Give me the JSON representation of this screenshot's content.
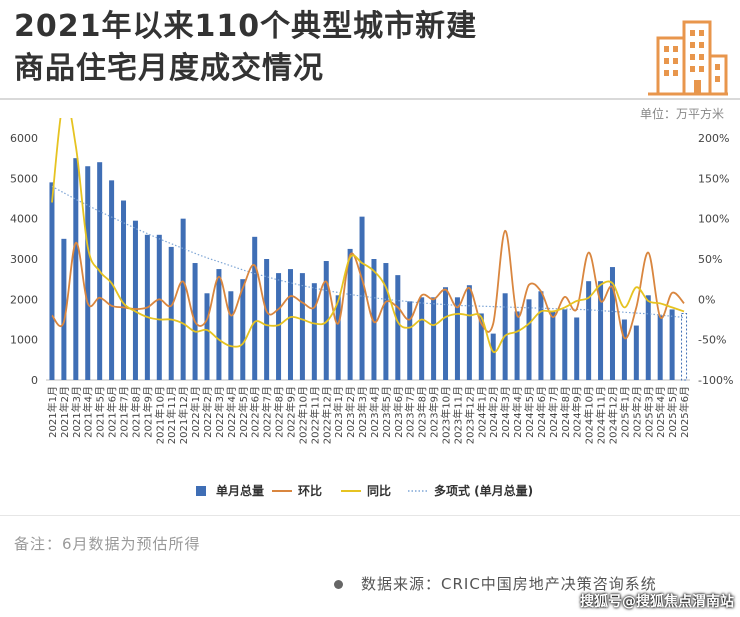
{
  "title_line1": "2021年以来110个典型城市新建",
  "title_line2": "商品住宅月度成交情况",
  "unit": "单位：万平方米",
  "note": "备注：6月数据为预估所得",
  "source": "数据来源：CRIC中国房地产决策咨询系统",
  "watermark": "搜狐号@搜狐焦点渭南站",
  "icon_name": "city-buildings-icon",
  "colors": {
    "bar": "#3f6eb5",
    "mom": "#d9863f",
    "yoy": "#e6c321",
    "trend": "#7fa6d6",
    "title": "#333333",
    "icon": "#e8964c"
  },
  "chart_data": {
    "type": "bar",
    "categories": [
      "2021年1月",
      "2021年2月",
      "2021年3月",
      "2021年4月",
      "2021年5月",
      "2021年6月",
      "2021年7月",
      "2021年8月",
      "2021年9月",
      "2021年10月",
      "2021年11月",
      "2021年12月",
      "2022年1月",
      "2022年2月",
      "2022年3月",
      "2022年4月",
      "2022年5月",
      "2022年6月",
      "2022年7月",
      "2022年8月",
      "2022年9月",
      "2022年10月",
      "2022年11月",
      "2022年12月",
      "2023年1月",
      "2023年2月",
      "2023年3月",
      "2023年4月",
      "2023年5月",
      "2023年6月",
      "2023年7月",
      "2023年8月",
      "2023年9月",
      "2023年10月",
      "2023年11月",
      "2023年12月",
      "2024年1月",
      "2024年2月",
      "2024年3月",
      "2024年4月",
      "2024年5月",
      "2024年6月",
      "2024年7月",
      "2024年8月",
      "2024年9月",
      "2024年10月",
      "2024年11月",
      "2024年12月",
      "2025年1月",
      "2025年2月",
      "2025年3月",
      "2025年4月",
      "2025年5月",
      "2025年6月"
    ],
    "series": [
      {
        "name": "单月总量",
        "type": "bar",
        "axis": "left",
        "values": [
          4900,
          3500,
          5500,
          5300,
          5400,
          4950,
          4450,
          3950,
          3600,
          3600,
          3300,
          4000,
          2900,
          2150,
          2750,
          2200,
          2500,
          3550,
          3000,
          2650,
          2750,
          2650,
          2400,
          2950,
          2100,
          3250,
          4050,
          3000,
          2900,
          2600,
          1950,
          2050,
          2050,
          2300,
          2050,
          2350,
          1650,
          1150,
          2150,
          1700,
          2000,
          2200,
          1700,
          1750,
          1550,
          2450,
          2450,
          2800,
          1500,
          1350,
          2100,
          1600,
          1750,
          1650
        ]
      },
      {
        "name": "环比",
        "type": "line",
        "axis": "right",
        "values": [
          -20,
          -28,
          70,
          -5,
          2,
          -8,
          -10,
          -12,
          -10,
          0,
          -8,
          22,
          -28,
          -25,
          28,
          -20,
          14,
          42,
          -15,
          -12,
          4,
          -4,
          -10,
          22,
          -30,
          55,
          25,
          -28,
          -3,
          -10,
          -25,
          5,
          0,
          12,
          -10,
          14,
          -30,
          -30,
          85,
          -20,
          18,
          10,
          -22,
          3,
          -12,
          58,
          -2,
          15,
          -48,
          -10,
          58,
          -22,
          8,
          -5
        ]
      },
      {
        "name": "同比",
        "type": "line",
        "axis": "right",
        "values": [
          120,
          250,
          190,
          65,
          35,
          20,
          -5,
          -15,
          -22,
          -25,
          -25,
          -30,
          -40,
          -38,
          -50,
          -58,
          -55,
          -28,
          -32,
          -32,
          -22,
          -25,
          -30,
          -28,
          -2,
          52,
          45,
          35,
          15,
          -28,
          -35,
          -25,
          -32,
          -22,
          -18,
          -20,
          -22,
          -65,
          -45,
          -40,
          -30,
          -15,
          -15,
          -10,
          -2,
          2,
          18,
          20,
          -10,
          15,
          -2,
          -5,
          -10,
          -15
        ]
      },
      {
        "name": "多项式 (单月总量)",
        "type": "trend",
        "axis": "left",
        "values": [
          4800,
          4640,
          4480,
          4330,
          4180,
          4040,
          3900,
          3760,
          3630,
          3500,
          3380,
          3260,
          3140,
          3030,
          2930,
          2830,
          2730,
          2640,
          2560,
          2480,
          2410,
          2340,
          2280,
          2220,
          2170,
          2120,
          2080,
          2040,
          2000,
          1970,
          1940,
          1910,
          1890,
          1870,
          1850,
          1840,
          1830,
          1820,
          1810,
          1800,
          1790,
          1780,
          1770,
          1760,
          1750,
          1740,
          1720,
          1700,
          1680,
          1660,
          1640,
          1610,
          1580,
          1550
        ]
      }
    ],
    "ylim_left": [
      0,
      6000
    ],
    "yticks_left": [
      "0",
      "1000",
      "2000",
      "3000",
      "4000",
      "5000",
      "6000"
    ],
    "ylim_right": [
      -100,
      200
    ],
    "yticks_right": [
      "-100%",
      "-50%",
      "0%",
      "50%",
      "100%",
      "150%",
      "200%"
    ],
    "last_bar_estimated": true,
    "legend": [
      "单月总量",
      "环比",
      "同比",
      "多项式 (单月总量)"
    ],
    "legend_position": "bottom",
    "grid": false
  }
}
